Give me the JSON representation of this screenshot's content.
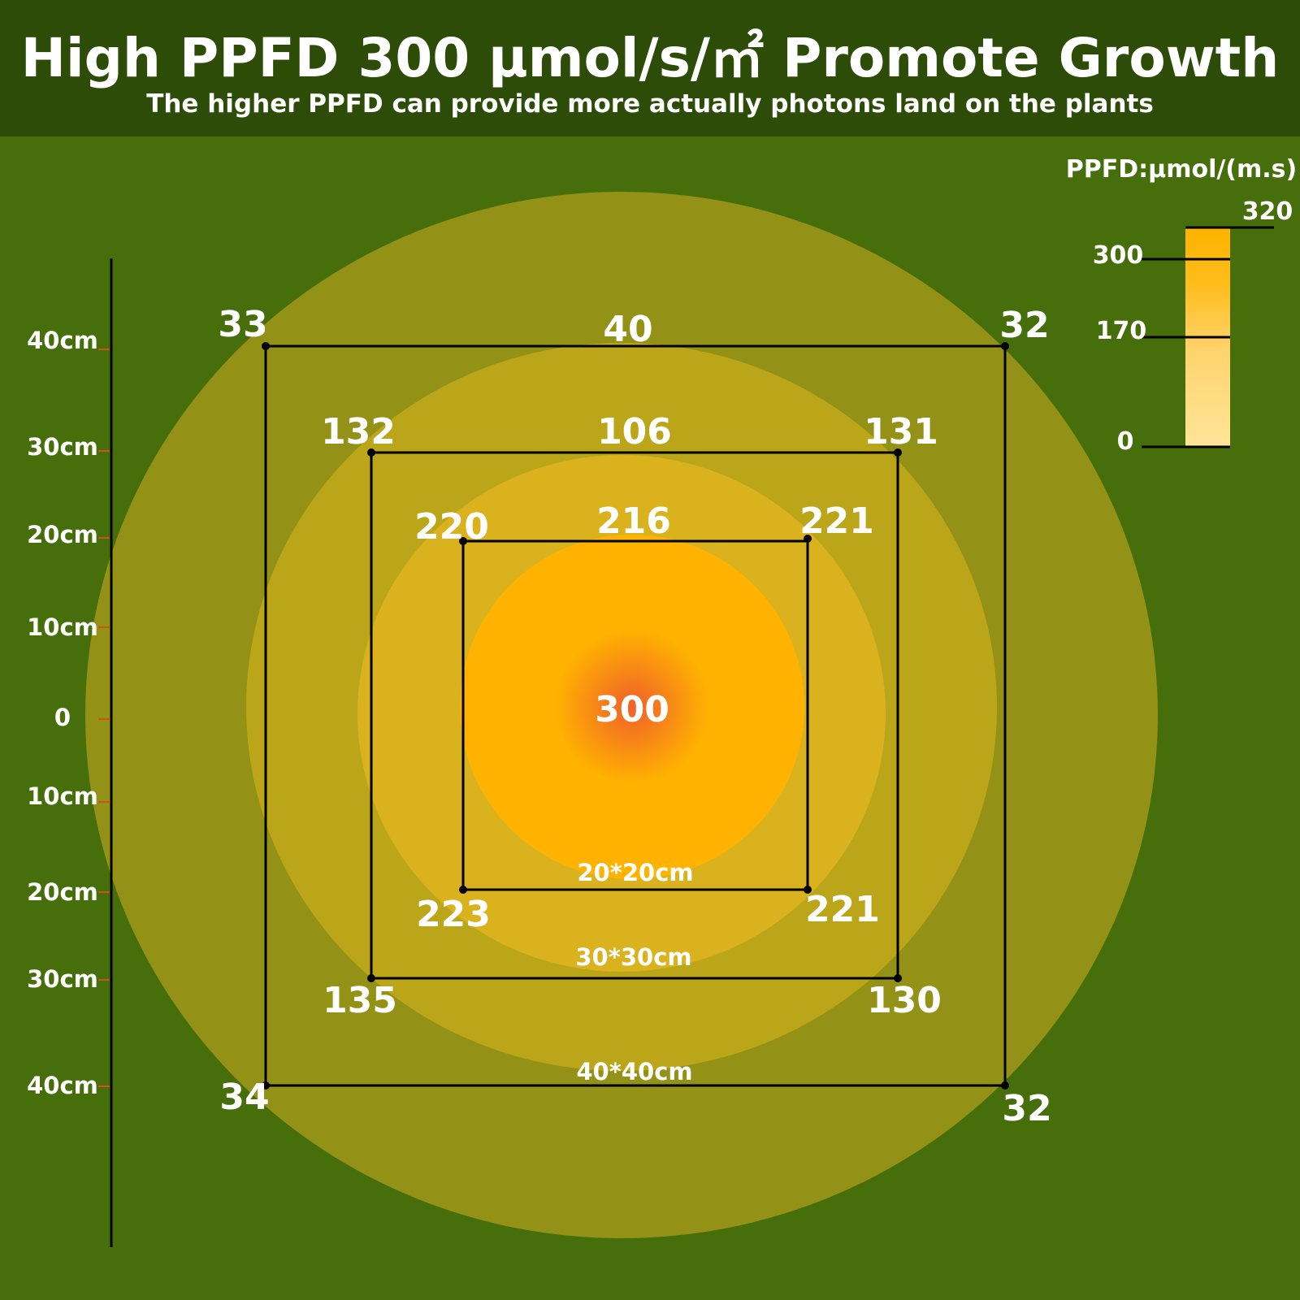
{
  "header": {
    "title": "High PPFD 300 μmol/s/㎡ Promote Growth",
    "subtitle": "The higher PPFD can provide more actually photons land on the plants"
  },
  "legend": {
    "title": "PPFD:μmol/(m.s)",
    "ticks": [
      "320",
      "300",
      "170",
      "0"
    ],
    "gradient_colors": [
      "#ffb300",
      "#ffe59a"
    ]
  },
  "axis": {
    "labels": [
      "40cm",
      "30cm",
      "20cm",
      "10cm",
      "0",
      "10cm",
      "20cm",
      "30cm",
      "40cm"
    ]
  },
  "center": {
    "value": "300"
  },
  "squares": {
    "s40": {
      "top_left": "33",
      "top_mid": "40",
      "top_right": "32",
      "bottom_left": "34",
      "bottom_right": "32",
      "size_label": "40*40cm"
    },
    "s30": {
      "top_left": "132",
      "top_mid": "106",
      "top_right": "131",
      "bottom_left": "135",
      "bottom_right": "130",
      "size_label": "30*30cm"
    },
    "s20": {
      "top_left": "220",
      "top_mid": "216",
      "top_right": "221",
      "bottom_left": "223",
      "bottom_right": "221",
      "size_label": "20*20cm"
    }
  },
  "colors": {
    "background": "#466e0a",
    "header": "#2d4c07",
    "ring_outer": "#939116",
    "ring_mid": "#bba619",
    "ring_inner": "#d9b21d",
    "core": "#ffb300",
    "hotspot": "#f0602a"
  }
}
